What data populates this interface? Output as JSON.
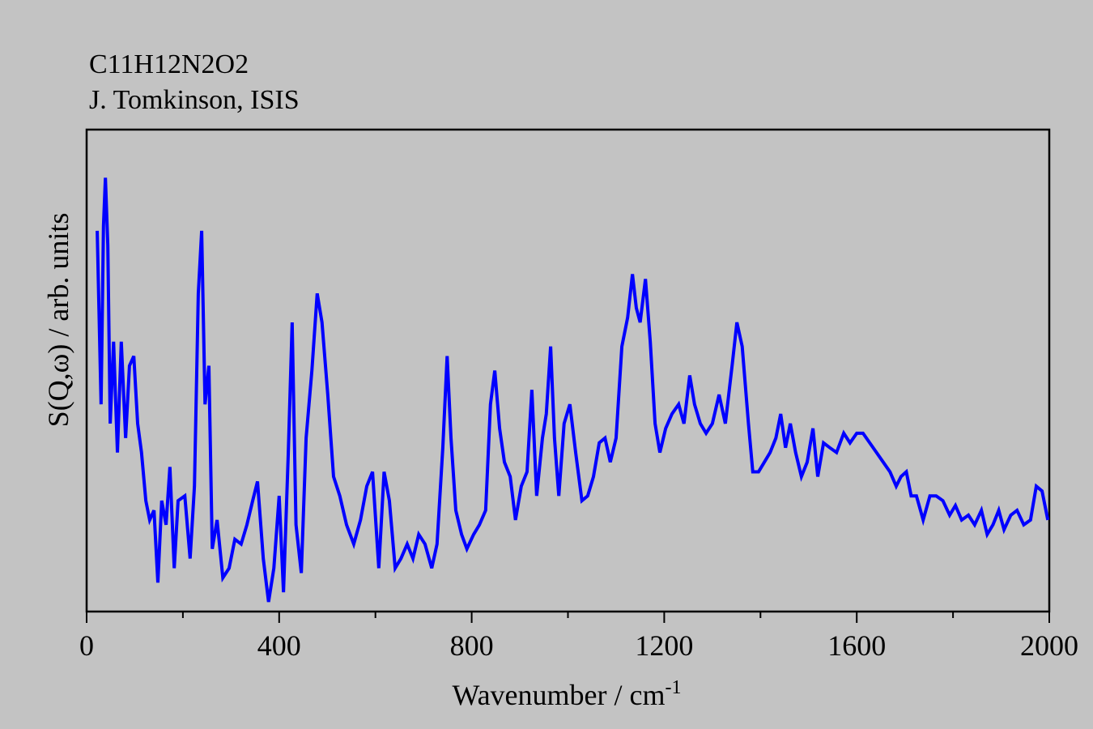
{
  "chart_data": {
    "type": "line",
    "title_lines": [
      "C11H12N2O2",
      "J. Tomkinson, ISIS"
    ],
    "x_label": {
      "text": "Wavenumber / cm",
      "superscript": "-1"
    },
    "y_label": "S(Q,ω) / arb. units",
    "xlim": [
      0,
      2000
    ],
    "xticks": [
      0,
      400,
      800,
      1200,
      1600,
      2000
    ],
    "xminorticks": [
      200,
      600,
      1000,
      1400,
      1800
    ],
    "ylim": [
      0,
      100
    ],
    "series": [
      {
        "color": "#0000ff",
        "x": [
          22,
          30,
          35,
          39,
          44,
          49,
          56,
          64,
          72,
          81,
          89,
          98,
          106,
          114,
          123,
          131,
          140,
          148,
          156,
          165,
          173,
          182,
          190,
          204,
          215,
          224,
          232,
          239,
          246,
          254,
          261,
          271,
          283,
          296,
          308,
          321,
          333,
          345,
          355,
          367,
          378,
          389,
          400,
          409,
          419,
          427,
          435,
          446,
          456,
          468,
          479,
          489,
          501,
          513,
          526,
          540,
          555,
          569,
          582,
          594,
          607,
          618,
          629,
          641,
          653,
          666,
          678,
          690,
          703,
          717,
          728,
          740,
          749,
          757,
          767,
          779,
          790,
          804,
          816,
          829,
          839,
          848,
          858,
          868,
          880,
          891,
          903,
          915,
          925,
          935,
          947,
          955,
          964,
          972,
          981,
          992,
          1004,
          1016,
          1029,
          1041,
          1053,
          1065,
          1077,
          1088,
          1100,
          1112,
          1124,
          1134,
          1142,
          1150,
          1161,
          1171,
          1181,
          1191,
          1203,
          1216,
          1230,
          1241,
          1253,
          1263,
          1275,
          1287,
          1300,
          1314,
          1327,
          1341,
          1351,
          1362,
          1375,
          1384,
          1396,
          1408,
          1420,
          1432,
          1442,
          1452,
          1462,
          1473,
          1485,
          1497,
          1509,
          1519,
          1531,
          1544,
          1558,
          1573,
          1586,
          1600,
          1613,
          1627,
          1641,
          1655,
          1669,
          1682,
          1692,
          1703,
          1713,
          1724,
          1738,
          1752,
          1765,
          1779,
          1793,
          1805,
          1818,
          1832,
          1845,
          1859,
          1871,
          1883,
          1895,
          1906,
          1920,
          1933,
          1947,
          1961,
          1973,
          1985,
          1997
        ],
        "values": [
          79,
          43,
          80,
          90,
          76,
          39,
          56,
          33,
          56,
          36,
          51,
          53,
          39,
          33,
          23,
          19,
          21,
          6,
          23,
          18,
          30,
          9,
          23,
          24,
          11,
          26,
          66,
          79,
          43,
          51,
          13,
          19,
          7,
          9,
          15,
          14,
          18,
          23,
          27,
          11,
          2,
          9,
          24,
          4,
          33,
          60,
          18,
          8,
          36,
          50,
          66,
          60,
          45,
          28,
          24,
          18,
          14,
          19,
          26,
          29,
          9,
          29,
          23,
          9,
          11,
          14,
          11,
          16,
          14,
          9,
          14,
          34,
          53,
          36,
          21,
          16,
          13,
          16,
          18,
          21,
          43,
          50,
          38,
          31,
          28,
          19,
          26,
          29,
          46,
          24,
          36,
          41,
          55,
          36,
          24,
          39,
          43,
          33,
          23,
          24,
          28,
          35,
          36,
          31,
          36,
          55,
          61,
          70,
          63,
          60,
          69,
          56,
          39,
          33,
          38,
          41,
          43,
          39,
          49,
          43,
          39,
          37,
          39,
          45,
          39,
          51,
          60,
          55,
          39,
          29,
          29,
          31,
          33,
          36,
          41,
          34,
          39,
          33,
          28,
          31,
          38,
          28,
          35,
          34,
          33,
          37,
          35,
          37,
          37,
          35,
          33,
          31,
          29,
          26,
          28,
          29,
          24,
          24,
          19,
          24,
          24,
          23,
          20,
          22,
          19,
          20,
          18,
          21,
          16,
          18,
          21,
          17,
          20,
          21,
          18,
          19,
          26,
          25,
          19
        ]
      }
    ]
  }
}
